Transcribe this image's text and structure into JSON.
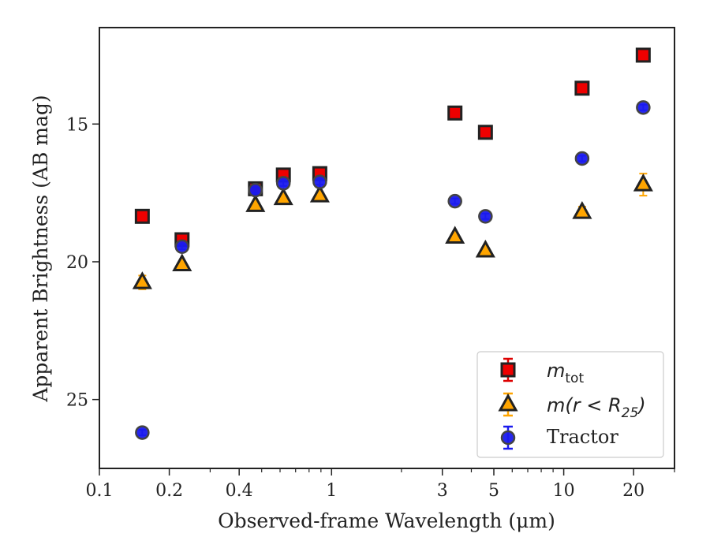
{
  "chart_data": {
    "type": "scatter",
    "xlabel": "Observed-frame Wavelength (μm)",
    "ylabel": "Apparent Brightness (AB mag)",
    "xscale": "log",
    "xlim": [
      0.1,
      30
    ],
    "ylim": [
      27.5,
      11.5
    ],
    "y_inverted": true,
    "x_ticks": [
      {
        "value": 0.1,
        "label": "0.1"
      },
      {
        "value": 0.2,
        "label": "0.2"
      },
      {
        "value": 0.4,
        "label": "0.4"
      },
      {
        "value": 1,
        "label": "1"
      },
      {
        "value": 3,
        "label": "3"
      },
      {
        "value": 5,
        "label": "5"
      },
      {
        "value": 10,
        "label": "10"
      },
      {
        "value": 20,
        "label": "20"
      }
    ],
    "y_ticks": [
      {
        "value": 15,
        "label": "15"
      },
      {
        "value": 20,
        "label": "20"
      },
      {
        "value": 25,
        "label": "25"
      }
    ],
    "grid": false,
    "legend_position": "bottom-right",
    "series": [
      {
        "name": "m_tot",
        "marker": "square",
        "fill": "#ee0000",
        "edge": "#222222",
        "err_color": "#dd0000",
        "points": [
          {
            "x": 0.153,
            "y": 18.35,
            "err": 0.1
          },
          {
            "x": 0.227,
            "y": 19.2,
            "err": 0.1
          },
          {
            "x": 0.47,
            "y": 17.35,
            "err": 0.08
          },
          {
            "x": 0.62,
            "y": 16.85,
            "err": 0.08
          },
          {
            "x": 0.89,
            "y": 16.8,
            "err": 0.08
          },
          {
            "x": 3.4,
            "y": 14.6,
            "err": 0.05
          },
          {
            "x": 4.6,
            "y": 15.3,
            "err": 0.05
          },
          {
            "x": 12.0,
            "y": 13.7,
            "err": 0.05
          },
          {
            "x": 22.0,
            "y": 12.5,
            "err": 0.05
          }
        ]
      },
      {
        "name": "m(r < R_25)",
        "marker": "triangle",
        "fill": "#ffa500",
        "edge": "#222222",
        "err_color": "#ffa500",
        "points": [
          {
            "x": 0.153,
            "y": 20.75,
            "err": 0.25
          },
          {
            "x": 0.227,
            "y": 20.1,
            "err": 0.1
          },
          {
            "x": 0.47,
            "y": 17.95,
            "err": 0.08
          },
          {
            "x": 0.62,
            "y": 17.7,
            "err": 0.08
          },
          {
            "x": 0.89,
            "y": 17.6,
            "err": 0.08
          },
          {
            "x": 3.4,
            "y": 19.1,
            "err": 0.08
          },
          {
            "x": 4.6,
            "y": 19.6,
            "err": 0.08
          },
          {
            "x": 12.0,
            "y": 18.2,
            "err": 0.2
          },
          {
            "x": 22.0,
            "y": 17.2,
            "err": 0.4
          }
        ]
      },
      {
        "name": "Tractor",
        "marker": "circle",
        "fill": "#1a1aee",
        "edge": "#444444",
        "err_color": "#1a1aee",
        "points": [
          {
            "x": 0.153,
            "y": 26.2,
            "err": 0.1
          },
          {
            "x": 0.227,
            "y": 19.45,
            "err": 0.1
          },
          {
            "x": 0.47,
            "y": 17.4,
            "err": 0.1
          },
          {
            "x": 0.62,
            "y": 17.15,
            "err": 0.1
          },
          {
            "x": 0.89,
            "y": 17.1,
            "err": 0.1
          },
          {
            "x": 3.4,
            "y": 17.8,
            "err": 0.1
          },
          {
            "x": 4.6,
            "y": 18.35,
            "err": 0.1
          },
          {
            "x": 12.0,
            "y": 16.25,
            "err": 0.1
          },
          {
            "x": 22.0,
            "y": 14.4,
            "err": 0.1
          }
        ]
      }
    ]
  },
  "legend": {
    "items": [
      {
        "main": "m",
        "sub": "tot"
      },
      {
        "text": "m(r < R",
        "sub": "25",
        "tail": ")"
      },
      {
        "text": "Tractor"
      }
    ]
  }
}
